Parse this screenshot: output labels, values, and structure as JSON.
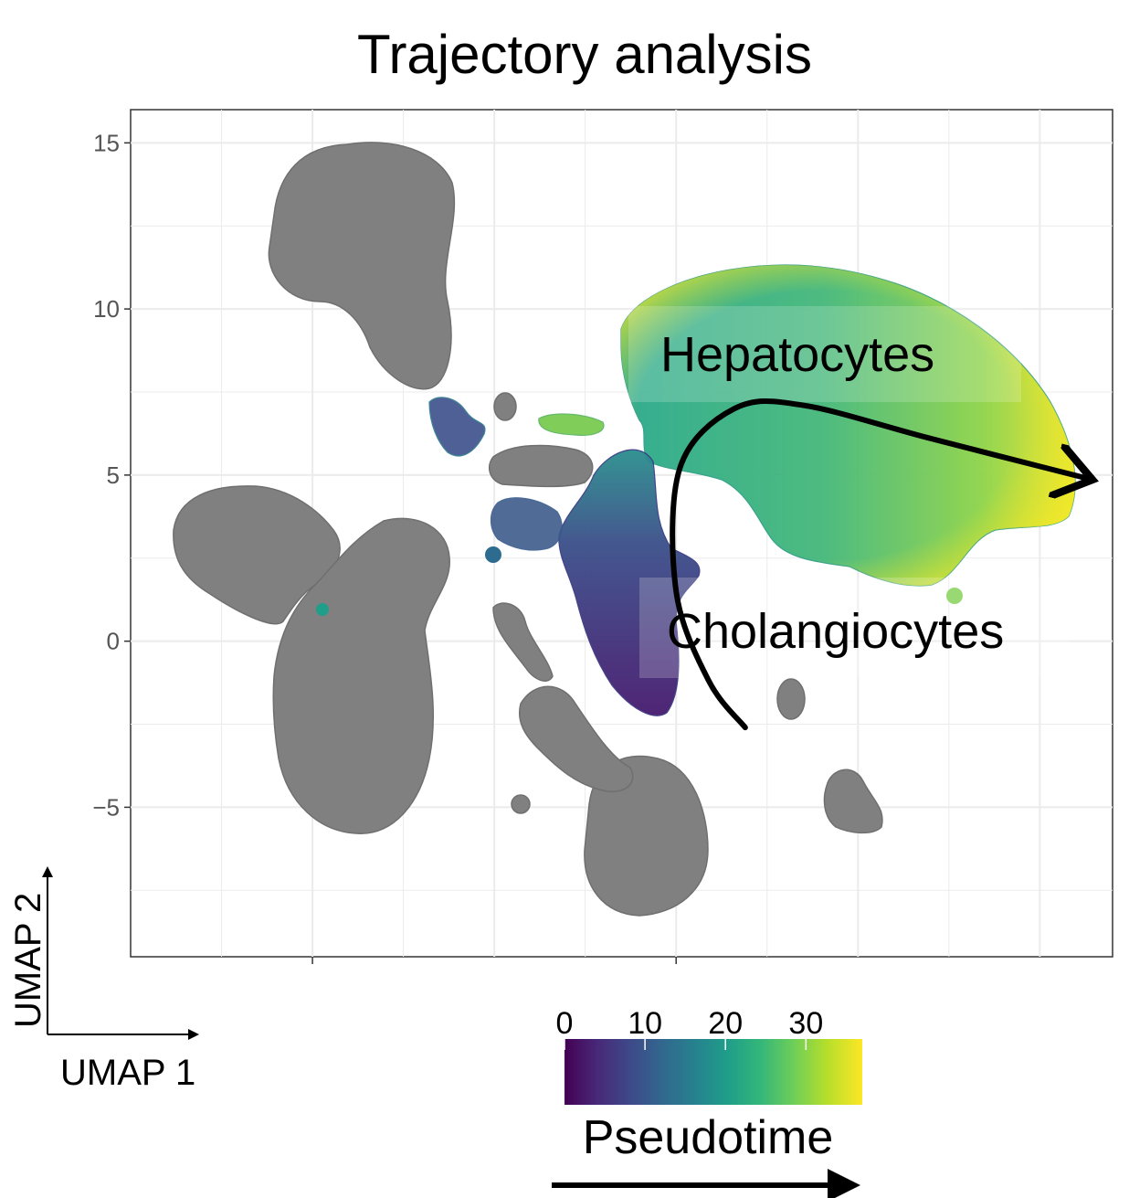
{
  "chart_data": {
    "type": "scatter",
    "title": "Trajectory analysis",
    "xlabel": "UMAP 1",
    "ylabel": "UMAP 2",
    "xlim": [
      -10,
      17
    ],
    "ylim": [
      -9.5,
      16
    ],
    "x_major_ticks": [
      -5,
      5
    ],
    "y_ticks": [
      15,
      10,
      5,
      0,
      -5
    ],
    "y_tick_labels": [
      "15",
      "10",
      "5",
      "0",
      "−5"
    ],
    "grid": true,
    "colors": {
      "background_cells": "#808080",
      "trajectory": "#000000",
      "viridis": [
        "#440154",
        "#482878",
        "#3e4989",
        "#31688e",
        "#26828e",
        "#1f9e89",
        "#35b779",
        "#6ece58",
        "#b5de2b",
        "#fde725"
      ]
    },
    "colorbar": {
      "title": "Pseudotime",
      "ticks": [
        0,
        10,
        20,
        30
      ],
      "range": [
        0,
        37
      ]
    },
    "cell_groups": [
      {
        "name": "Hepatocytes",
        "center": [
          12.5,
          7.5
        ],
        "pseudotime": "25-37"
      },
      {
        "name": "Cholangiocytes",
        "center": [
          6.5,
          1.0
        ],
        "pseudotime": "0-8"
      }
    ],
    "trajectory": [
      [
        6.9,
        -2.6
      ],
      [
        5.9,
        -1.2
      ],
      [
        5.0,
        1.5
      ],
      [
        5.1,
        5.2
      ],
      [
        6.6,
        7.0
      ],
      [
        8.5,
        7.1
      ],
      [
        12.0,
        6.1
      ],
      [
        16.3,
        4.9
      ]
    ]
  }
}
